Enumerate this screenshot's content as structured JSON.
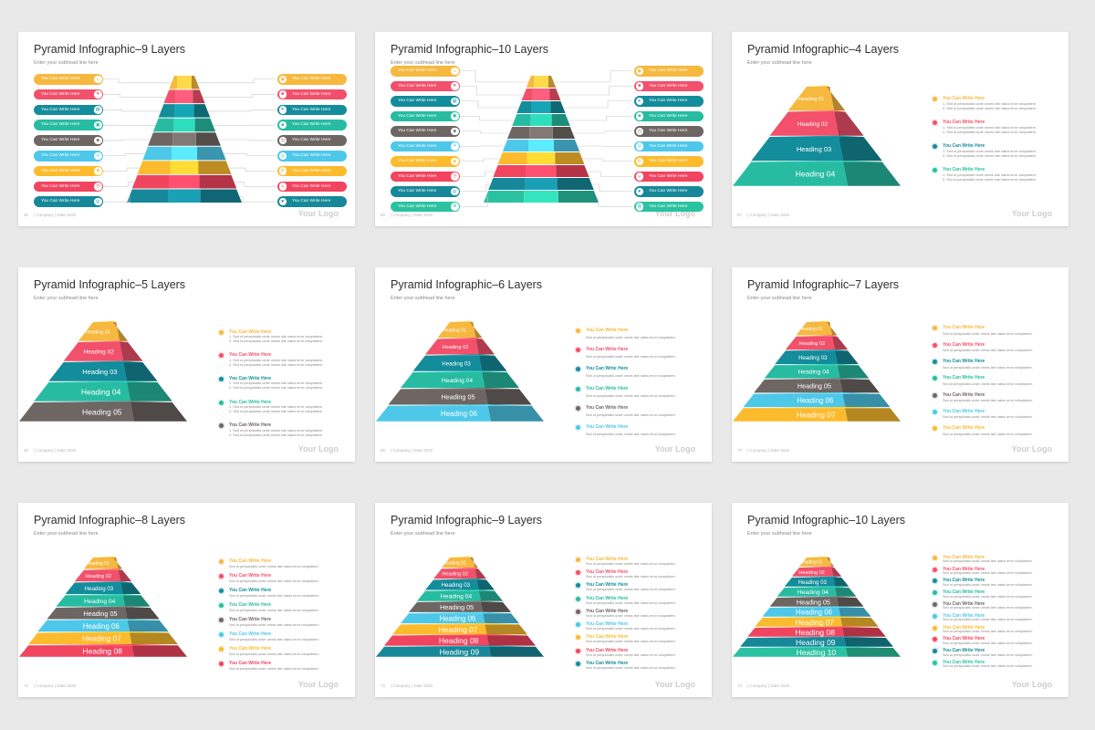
{
  "common": {
    "subhead": "Enter your subhead line here",
    "company": "| Company | Date 2020",
    "logo": "Your Logo",
    "bullet_title": "You Can Write Here",
    "bullet_line1": "Sed ut perspiciatis unde omnis iste natus error voluptatem.",
    "bullet_line2": "Sed ut perspiciatis unde omnis iste natus error voluptatem."
  },
  "colors": [
    "#f6b83e",
    "#f2506b",
    "#138c9b",
    "#27bca2",
    "#6e6663",
    "#4dc8e9",
    "#fcbb2d",
    "#f1445f",
    "#168899",
    "#2bc2a1"
  ],
  "icons": [
    "person-icon",
    "heart-icon",
    "chart-icon",
    "building-icon",
    "people-icon",
    "lightbulb-icon",
    "briefcase-icon",
    "clock-icon",
    "globe-icon",
    "gear-icon"
  ],
  "slides": [
    {
      "title": "Pyramid Infographic–9 Layers",
      "num": "66",
      "layout": "pills",
      "layers": 9,
      "colorsStart": 0
    },
    {
      "title": "Pyramid Infographic–10 Layers",
      "num": "66",
      "layout": "pills",
      "layers": 10,
      "colorsStart": 0
    },
    {
      "title": "Pyramid Infographic–4 Layers",
      "num": "67",
      "layout": "headings",
      "layers": 4,
      "colors": [
        "#f6b83e",
        "#f2506b",
        "#138c9b",
        "#27bca2"
      ],
      "headings": [
        "Heading 01",
        "Heading 02",
        "Heading 03",
        "Heading 04"
      ]
    },
    {
      "title": "Pyramid Infographic–5 Layers",
      "num": "68",
      "layout": "headings",
      "layers": 5,
      "colors": [
        "#f6b83e",
        "#f2506b",
        "#138c9b",
        "#27bca2",
        "#6e6663"
      ],
      "headings": [
        "Heading 01",
        "Heading 02",
        "Heading 03",
        "Heading 04",
        "Heading 05"
      ]
    },
    {
      "title": "Pyramid Infographic–6 Layers",
      "num": "69",
      "layout": "headings",
      "layers": 6,
      "colors": [
        "#f6b83e",
        "#f2506b",
        "#138c9b",
        "#27bca2",
        "#6e6663",
        "#4dc8e9"
      ],
      "headings": [
        "Heading 01",
        "Heading 02",
        "Heading 03",
        "Heading 04",
        "Heading 05",
        "Heading 06"
      ]
    },
    {
      "title": "Pyramid Infographic–7 Layers",
      "num": "70",
      "layout": "headings",
      "layers": 7,
      "colors": [
        "#f6b83e",
        "#f2506b",
        "#138c9b",
        "#27bca2",
        "#6e6663",
        "#4dc8e9",
        "#fcbb2d"
      ],
      "headings": [
        "Heading 01",
        "Heading 02",
        "Heading 03",
        "Heading 04",
        "Heading 05",
        "Heading 06",
        "Heading 07"
      ]
    },
    {
      "title": "Pyramid Infographic–8 Layers",
      "num": "71",
      "layout": "headings",
      "layers": 8,
      "colors": [
        "#f6b83e",
        "#f2506b",
        "#138c9b",
        "#27bca2",
        "#6e6663",
        "#4dc8e9",
        "#fcbb2d",
        "#f1445f"
      ],
      "headings": [
        "Heading 01",
        "Heading 02",
        "Heading 03",
        "Heading 04",
        "Heading 05",
        "Heading 06",
        "Heading 07",
        "Heading 08"
      ]
    },
    {
      "title": "Pyramid Infographic–9 Layers",
      "num": "72",
      "layout": "headings",
      "layers": 9,
      "colors": [
        "#f6b83e",
        "#f2506b",
        "#138c9b",
        "#27bca2",
        "#6e6663",
        "#4dc8e9",
        "#fcbb2d",
        "#f1445f",
        "#168899"
      ],
      "headings": [
        "Heading 01",
        "Heading 02",
        "Heading 03",
        "Heading 04",
        "Heading 05",
        "Heading 06",
        "Heading 07",
        "Heading 08",
        "Heading 09"
      ]
    },
    {
      "title": "Pyramid Infographic–10 Layers",
      "num": "73",
      "layout": "headings",
      "layers": 10,
      "colors": [
        "#f6b83e",
        "#f2506b",
        "#138c9b",
        "#27bca2",
        "#6e6663",
        "#4dc8e9",
        "#fcbb2d",
        "#f1445f",
        "#168899",
        "#2bc2a1"
      ],
      "headings": [
        "Heading 01",
        "Heading 02",
        "Heading 03",
        "Heading 04",
        "Heading 05",
        "Heading 06",
        "Heading 07",
        "Heading 08",
        "Heading 09",
        "Heading 10"
      ]
    }
  ]
}
